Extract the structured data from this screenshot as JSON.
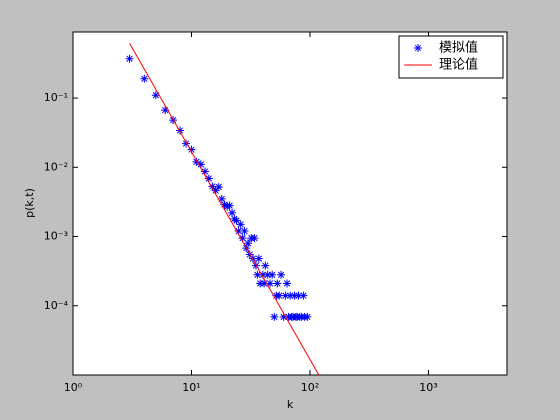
{
  "chart_data": {
    "type": "line",
    "xlabel": "k",
    "ylabel": "p(k,t)",
    "xscale": "log",
    "yscale": "log",
    "xlim": [
      1,
      4600
    ],
    "ylim": [
      1e-05,
      0.9
    ],
    "xticks": [
      {
        "value": 1,
        "label": "10⁰"
      },
      {
        "value": 10,
        "label": "10¹"
      },
      {
        "value": 100,
        "label": "10²"
      },
      {
        "value": 1000,
        "label": "10³"
      }
    ],
    "yticks": [
      {
        "value": 0.0001,
        "label": "10⁻⁴"
      },
      {
        "value": 0.001,
        "label": "10⁻³"
      },
      {
        "value": 0.01,
        "label": "10⁻²"
      },
      {
        "value": 0.1,
        "label": "10⁻¹"
      }
    ],
    "legend": "upper right",
    "series": [
      {
        "name": "模拟值",
        "color": "#0000ff",
        "marker": "asterisk",
        "x": [
          3,
          4,
          5,
          6,
          7,
          8,
          9,
          10,
          11,
          12,
          13,
          14,
          15,
          16,
          17,
          18,
          19,
          20,
          21,
          22,
          23,
          24,
          25,
          26,
          27,
          28,
          29,
          30,
          31,
          32,
          33,
          34,
          35,
          36,
          37,
          38,
          40,
          41,
          42,
          44,
          46,
          48,
          50,
          52,
          53,
          55,
          57,
          60,
          62,
          64,
          66,
          68,
          70,
          72,
          74,
          76,
          78,
          80,
          82,
          85,
          88,
          90,
          95
        ],
        "values": [
          0.37,
          0.19,
          0.11,
          0.067,
          0.048,
          0.034,
          0.022,
          0.018,
          0.012,
          0.011,
          0.0087,
          0.0069,
          0.0053,
          0.0046,
          0.0052,
          0.0035,
          0.0029,
          0.0027,
          0.0028,
          0.0022,
          0.0018,
          0.0017,
          0.0012,
          0.0015,
          0.00095,
          0.0012,
          0.00068,
          0.0008,
          0.00055,
          0.00095,
          0.00048,
          0.00095,
          0.00038,
          0.00028,
          0.00048,
          0.00021,
          0.00028,
          0.00021,
          0.00038,
          0.00028,
          0.00021,
          0.00028,
          6.9e-05,
          0.00014,
          0.00021,
          0.00014,
          0.00028,
          6.9e-05,
          0.00014,
          0.00021,
          6.9e-05,
          0.00014,
          6.9e-05,
          6.9e-05,
          0.00014,
          6.9e-05,
          6.9e-05,
          0.00014,
          6.9e-05,
          6.9e-05,
          0.00014,
          6.9e-05,
          6.9e-05
        ]
      },
      {
        "name": "理论值",
        "color": "#ff0000",
        "x": [
          3,
          120
        ],
        "values": [
          0.62,
          9.7e-06
        ]
      }
    ]
  }
}
